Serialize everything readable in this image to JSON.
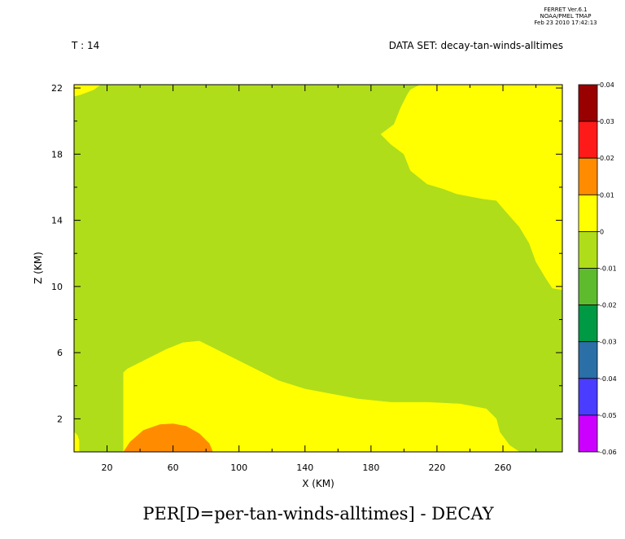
{
  "header": {
    "ferret_lines": [
      "FERRET  Ver.6.1",
      "NOAA/PMEL TMAP",
      "Feb 23 2010 17:42:13"
    ],
    "time_label": "T : 14",
    "dataset_label": "DATA SET: decay-tan-winds-alltimes"
  },
  "chart_data": {
    "type": "heatmap",
    "title": "PER[D=per-tan-winds-alltimes] - DECAY",
    "xlabel": "X (KM)",
    "ylabel": "Z (KM)",
    "xlim": [
      0,
      296
    ],
    "ylim": [
      0,
      22.2
    ],
    "x_ticks": [
      20,
      60,
      100,
      140,
      180,
      220,
      260
    ],
    "y_ticks": [
      2,
      6,
      10,
      14,
      18,
      22
    ],
    "grid": false,
    "legend": "right",
    "colorbar": {
      "levels": [
        "0.04",
        "0.03",
        "0.02",
        "0.01",
        "0",
        "-0.01",
        "-0.02",
        "-0.03",
        "-0.04",
        "-0.05",
        "-0.06"
      ],
      "colors": [
        "#990000",
        "#ff1a1a",
        "#ff8c00",
        "#ffff00",
        "#afdd1a",
        "#5fbb2e",
        "#009944",
        "#2a6fa6",
        "#4b3dff",
        "#cc00ff"
      ]
    },
    "regions": [
      {
        "name": "background",
        "value_range": [
          -0.01,
          0
        ],
        "color": "#afdd1a",
        "polygon": [
          [
            0,
            22.2
          ],
          [
            296,
            22.2
          ],
          [
            296,
            0
          ],
          [
            0,
            0
          ]
        ]
      },
      {
        "name": "upper-left-strip",
        "value_range": [
          0,
          0.01
        ],
        "color": "#ffff00",
        "polygon": [
          [
            0,
            22.2
          ],
          [
            16,
            22.2
          ],
          [
            12,
            21.9
          ],
          [
            4,
            21.6
          ],
          [
            0,
            21.5
          ]
        ]
      },
      {
        "name": "upper-right",
        "value_range": [
          0,
          0.01
        ],
        "color": "#ffff00",
        "polygon": [
          [
            210,
            22.2
          ],
          [
            296,
            22.2
          ],
          [
            296,
            9.8
          ],
          [
            290,
            9.9
          ],
          [
            286,
            10.5
          ],
          [
            280,
            11.5
          ],
          [
            276,
            12.6
          ],
          [
            270,
            13.6
          ],
          [
            262,
            14.5
          ],
          [
            256,
            15.2
          ],
          [
            248,
            15.3
          ],
          [
            232,
            15.6
          ],
          [
            224,
            15.9
          ],
          [
            214,
            16.2
          ],
          [
            204,
            17.0
          ],
          [
            200,
            18.0
          ],
          [
            192,
            18.6
          ],
          [
            186,
            19.2
          ],
          [
            194,
            19.8
          ],
          [
            198,
            20.8
          ],
          [
            202,
            21.6
          ],
          [
            204,
            21.9
          ]
        ]
      },
      {
        "name": "lower-band",
        "value_range": [
          0,
          0.01
        ],
        "color": "#ffff00",
        "polygon": [
          [
            30,
            0
          ],
          [
            30,
            4.8
          ],
          [
            32,
            5.0
          ],
          [
            44,
            5.6
          ],
          [
            56,
            6.2
          ],
          [
            66,
            6.6
          ],
          [
            76,
            6.7
          ],
          [
            86,
            6.2
          ],
          [
            96,
            5.7
          ],
          [
            110,
            5.0
          ],
          [
            124,
            4.3
          ],
          [
            140,
            3.8
          ],
          [
            156,
            3.5
          ],
          [
            172,
            3.2
          ],
          [
            192,
            3.0
          ],
          [
            214,
            3.0
          ],
          [
            234,
            2.9
          ],
          [
            250,
            2.6
          ],
          [
            256,
            2.0
          ],
          [
            258,
            1.2
          ],
          [
            264,
            0.4
          ],
          [
            270,
            0
          ]
        ]
      },
      {
        "name": "left-edge-strip",
        "value_range": [
          0,
          0.01
        ],
        "color": "#ffff00",
        "polygon": [
          [
            0,
            0
          ],
          [
            3,
            0
          ],
          [
            3,
            0.7
          ],
          [
            2,
            1.0
          ],
          [
            0,
            1.2
          ]
        ]
      },
      {
        "name": "bottom-maximum",
        "value_range": [
          0.01,
          0.02
        ],
        "color": "#ff8c00",
        "polygon": [
          [
            30,
            0
          ],
          [
            34,
            0.6
          ],
          [
            42,
            1.3
          ],
          [
            52,
            1.65
          ],
          [
            60,
            1.7
          ],
          [
            68,
            1.55
          ],
          [
            76,
            1.1
          ],
          [
            82,
            0.5
          ],
          [
            84,
            0
          ]
        ]
      }
    ]
  }
}
